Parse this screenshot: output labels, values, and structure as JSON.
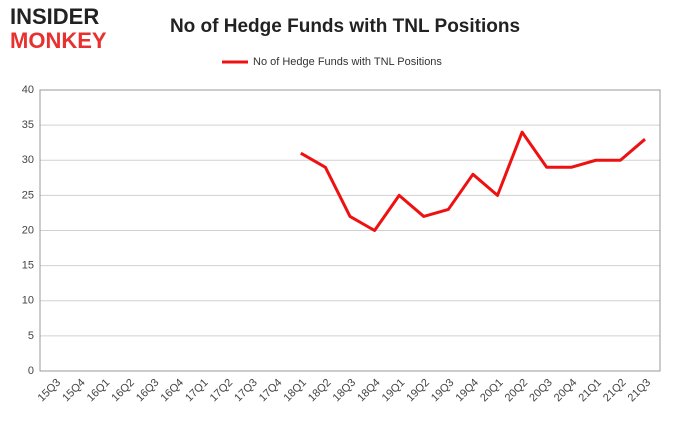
{
  "logo": {
    "line1": "INSIDER",
    "line2": "MONKEY"
  },
  "chart_data": {
    "type": "line",
    "title": "No of Hedge Funds with TNL Positions",
    "categories": [
      "15Q3",
      "15Q4",
      "16Q1",
      "16Q2",
      "16Q3",
      "16Q4",
      "17Q1",
      "17Q2",
      "17Q3",
      "17Q4",
      "18Q1",
      "18Q2",
      "18Q3",
      "18Q4",
      "19Q1",
      "19Q2",
      "19Q3",
      "19Q4",
      "20Q1",
      "20Q2",
      "20Q3",
      "20Q4",
      "21Q1",
      "21Q2",
      "21Q3"
    ],
    "series": [
      {
        "name": "No of Hedge Funds with TNL Positions",
        "color": "#ee1111",
        "values": [
          null,
          null,
          null,
          null,
          null,
          null,
          null,
          null,
          null,
          null,
          31,
          29,
          22,
          20,
          25,
          22,
          23,
          28,
          25,
          34,
          29,
          29,
          30,
          30,
          33
        ]
      }
    ],
    "ylim": [
      0,
      40
    ],
    "yticks": [
      0,
      5,
      10,
      15,
      20,
      25,
      30,
      35,
      40
    ],
    "grid": true,
    "legend": "top"
  }
}
